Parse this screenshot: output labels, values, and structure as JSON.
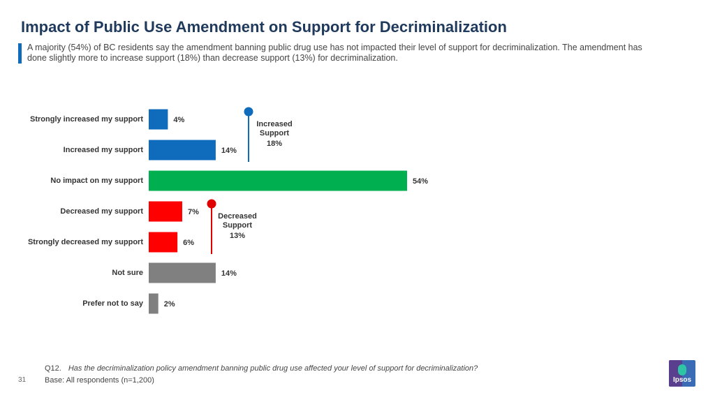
{
  "header": {
    "title": "Impact of Public Use Amendment on Support for Decriminalization",
    "subtitle": "A majority (54%) of BC residents say the amendment banning public drug use has not impacted their level of support for decriminalization. The amendment has done slightly more to increase support (18%) than decrease support (13%) for decriminalization."
  },
  "chart_data": {
    "type": "bar",
    "orientation": "horizontal",
    "categories": [
      "Strongly increased my support",
      "Increased my support",
      "No impact on my support",
      "Decreased my support",
      "Strongly decreased my support",
      "Not sure",
      "Prefer not to say"
    ],
    "values": [
      4,
      14,
      54,
      7,
      6,
      14,
      2
    ],
    "value_labels": [
      "4%",
      "14%",
      "54%",
      "7%",
      "6%",
      "14%",
      "2%"
    ],
    "colors": [
      "#0f6cbd",
      "#0f6cbd",
      "#00b050",
      "#ff0000",
      "#ff0000",
      "#808080",
      "#808080"
    ],
    "xlim": [
      0,
      60
    ],
    "grid": false,
    "annotations": [
      {
        "label_line1": "Increased",
        "label_line2": "Support",
        "value": "18%",
        "color": "#0f6cbd",
        "spans": [
          0,
          1
        ]
      },
      {
        "label_line1": "Decreased",
        "label_line2": "Support",
        "value": "13%",
        "color": "#e00000",
        "spans": [
          3,
          4
        ]
      }
    ]
  },
  "footer": {
    "question_id": "Q12.",
    "question_text": "Has the decriminalization policy amendment banning public drug use affected your level of support for decriminalization?",
    "base": "Base: All respondents (n=1,200)",
    "page_number": "31",
    "logo_text": "Ipsos"
  }
}
